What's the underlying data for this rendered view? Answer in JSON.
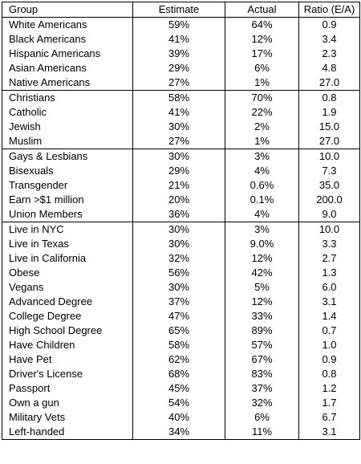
{
  "table": {
    "headers": [
      "Group",
      "Estimate",
      "Actual",
      "Ratio (E/A)"
    ],
    "rows": [
      [
        "White Americans",
        "59%",
        "64%",
        "0.9"
      ],
      [
        "Black Americans",
        "41%",
        "12%",
        "3.4"
      ],
      [
        "Hispanic Americans",
        "39%",
        "17%",
        "2.3"
      ],
      [
        "Asian Americans",
        "29%",
        "6%",
        "4.8"
      ],
      [
        "Native Americans",
        "27%",
        "1%",
        "27.0"
      ],
      [
        "Christians",
        "58%",
        "70%",
        "0.8"
      ],
      [
        "Catholic",
        "41%",
        "22%",
        "1.9"
      ],
      [
        "Jewish",
        "30%",
        "2%",
        "15.0"
      ],
      [
        "Muslim",
        "27%",
        "1%",
        "27.0"
      ],
      [
        "Gays & Lesbians",
        "30%",
        "3%",
        "10.0"
      ],
      [
        "Bisexuals",
        "29%",
        "4%",
        "7.3"
      ],
      [
        "Transgender",
        "21%",
        "0.6%",
        "35.0"
      ],
      [
        "Earn >$1 million",
        "20%",
        "0.1%",
        "200.0"
      ],
      [
        "Union Members",
        "36%",
        "4%",
        "9.0"
      ],
      [
        "Live in NYC",
        "30%",
        "3%",
        "10.0"
      ],
      [
        "Live in Texas",
        "30%",
        "9.0%",
        "3.3"
      ],
      [
        "Live in California",
        "32%",
        "12%",
        "2.7"
      ],
      [
        "Obese",
        "56%",
        "42%",
        "1.3"
      ],
      [
        "Vegans",
        "30%",
        "5%",
        "6.0"
      ],
      [
        "Advanced Degree",
        "37%",
        "12%",
        "3.1"
      ],
      [
        "College Degree",
        "47%",
        "33%",
        "1.4"
      ],
      [
        "High School Degree",
        "65%",
        "89%",
        "0.7"
      ],
      [
        "Have Children",
        "58%",
        "57%",
        "1.0"
      ],
      [
        "Have Pet",
        "62%",
        "67%",
        "0.9"
      ],
      [
        "Driver's License",
        "68%",
        "83%",
        "0.8"
      ],
      [
        "Passport",
        "45%",
        "37%",
        "1.2"
      ],
      [
        "Own a gun",
        "54%",
        "32%",
        "1.7"
      ],
      [
        "Military Vets",
        "40%",
        "6%",
        "6.7"
      ],
      [
        "Left-handed",
        "34%",
        "11%",
        "3.1"
      ]
    ],
    "section_starts": [
      5,
      9,
      14
    ]
  }
}
